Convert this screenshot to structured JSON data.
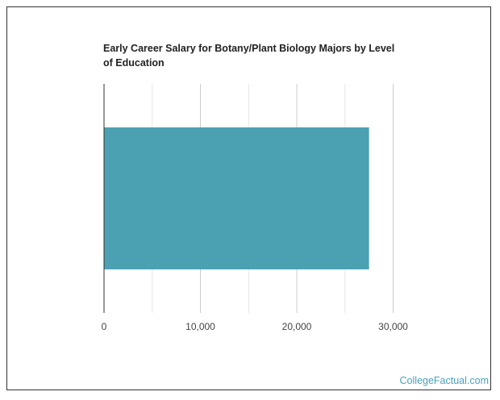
{
  "chart_data": {
    "type": "bar",
    "orientation": "horizontal",
    "title": "Early Career Salary for Botany/Plant Biology Majors by Level of Education",
    "categories": [
      ""
    ],
    "values": [
      27500
    ],
    "xlim": [
      0,
      35000
    ],
    "xticks": [
      0,
      10000,
      20000,
      30000
    ],
    "xtick_labels": [
      "0",
      "10,000",
      "20,000",
      "30,000"
    ],
    "grid": true,
    "bar_color": "#4ba0b2"
  },
  "branding": {
    "site_name": "CollegeFactual.com",
    "color": "#4a9fc0"
  }
}
